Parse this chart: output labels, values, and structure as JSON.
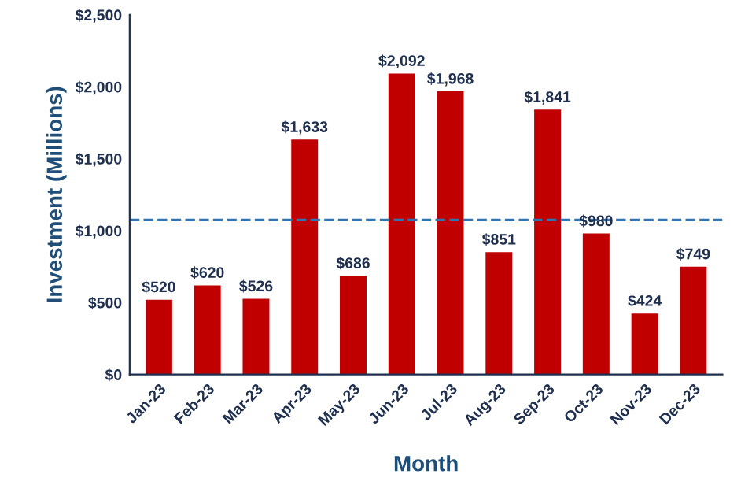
{
  "chart_data": {
    "type": "bar",
    "xlabel": "Month",
    "ylabel": "Investment (Millions)",
    "categories": [
      "Jan-23",
      "Feb-23",
      "Mar-23",
      "Apr-23",
      "May-23",
      "Jun-23",
      "Jul-23",
      "Aug-23",
      "Sep-23",
      "Oct-23",
      "Nov-23",
      "Dec-23"
    ],
    "values": [
      520,
      620,
      526,
      1633,
      686,
      2092,
      1968,
      851,
      1841,
      980,
      424,
      749
    ],
    "value_labels": [
      "$520",
      "$620",
      "$526",
      "$1,633",
      "$686",
      "$2,092",
      "$1,968",
      "$851",
      "$1,841",
      "$980",
      "$424",
      "$749"
    ],
    "color": "#c00000",
    "ylim": [
      0,
      2500
    ],
    "yticks": [
      {
        "value": 0,
        "label": "$0"
      },
      {
        "value": 500,
        "label": "$500"
      },
      {
        "value": 1000,
        "label": "$1,000"
      },
      {
        "value": 1500,
        "label": "$1,500"
      },
      {
        "value": 2000,
        "label": "$2,000"
      },
      {
        "value": 2500,
        "label": "$2,500"
      }
    ],
    "ref_lines": [
      {
        "axis": "y",
        "value": 1074,
        "color": "#2e75b6",
        "line_style": "dashed"
      }
    ],
    "grid": false,
    "legend": false
  }
}
